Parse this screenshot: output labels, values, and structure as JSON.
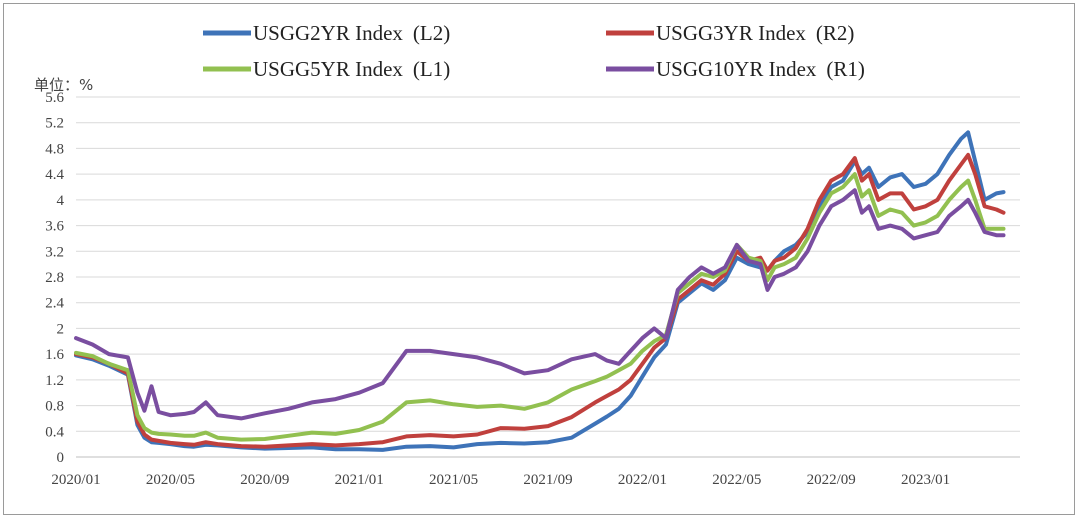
{
  "chart_data": {
    "type": "line",
    "unit_label": "单位：%",
    "ylim": [
      0,
      5.6
    ],
    "y_ticks": [
      "0",
      "0.4",
      "0.8",
      "1.2",
      "1.6",
      "2",
      "2.4",
      "2.8",
      "3.2",
      "3.6",
      "4",
      "4.4",
      "4.8",
      "5.2",
      "5.6"
    ],
    "y_tick_values": [
      0,
      0.4,
      0.8,
      1.2,
      1.6,
      2.0,
      2.4,
      2.8,
      3.2,
      3.6,
      4.0,
      4.4,
      4.8,
      5.2,
      5.6
    ],
    "x_range": [
      0,
      40
    ],
    "x_ticks": [
      "2020/01",
      "2020/05",
      "2020/09",
      "2021/01",
      "2021/05",
      "2021/09",
      "2022/01",
      "2022/05",
      "2022/09",
      "2023/01"
    ],
    "x_tick_values": [
      0,
      4,
      8,
      12,
      16,
      20,
      24,
      28,
      32,
      36
    ],
    "x_unit": "months since 2020/01",
    "legend": [
      {
        "name": "USGG2YR Index",
        "axis": "(L2)",
        "color": "#3e73b8"
      },
      {
        "name": "USGG3YR Index",
        "axis": "(R2)",
        "color": "#c0403d"
      },
      {
        "name": "USGG5YR Index",
        "axis": "(L1)",
        "color": "#92c050"
      },
      {
        "name": "USGG10YR Index",
        "axis": "(R1)",
        "color": "#7a4ea0"
      }
    ],
    "series": [
      {
        "name": "USGG2YR Index",
        "color": "#3e73b8",
        "x": [
          0,
          0.7,
          1.4,
          2.2,
          2.6,
          2.9,
          3.2,
          3.5,
          4,
          4.6,
          5,
          5.5,
          6,
          7,
          8,
          9,
          10,
          11,
          12,
          13,
          14,
          15,
          16,
          17,
          18,
          19,
          20,
          21,
          22,
          22.5,
          23,
          23.5,
          24,
          24.5,
          25,
          25.5,
          26,
          26.5,
          27,
          27.5,
          28,
          28.5,
          29,
          29.3,
          29.6,
          30,
          30.5,
          31,
          31.5,
          32,
          32.5,
          33,
          33.3,
          33.6,
          34,
          34.5,
          35,
          35.5,
          36,
          36.5,
          37,
          37.5,
          37.8,
          38.1,
          38.5,
          39,
          39.3
        ],
        "y": [
          1.58,
          1.52,
          1.42,
          1.28,
          0.5,
          0.3,
          0.23,
          0.22,
          0.2,
          0.17,
          0.16,
          0.19,
          0.18,
          0.15,
          0.13,
          0.14,
          0.15,
          0.12,
          0.12,
          0.11,
          0.16,
          0.17,
          0.15,
          0.2,
          0.22,
          0.21,
          0.23,
          0.3,
          0.52,
          0.63,
          0.75,
          0.95,
          1.25,
          1.55,
          1.75,
          2.4,
          2.55,
          2.7,
          2.6,
          2.75,
          3.1,
          3.0,
          2.95,
          2.9,
          3.05,
          3.2,
          3.3,
          3.5,
          3.9,
          4.2,
          4.3,
          4.6,
          4.4,
          4.5,
          4.2,
          4.35,
          4.4,
          4.2,
          4.25,
          4.4,
          4.7,
          4.95,
          5.05,
          4.6,
          4.0,
          4.1,
          4.12
        ]
      },
      {
        "name": "USGG3YR Index",
        "color": "#c0403d",
        "x": [
          0,
          0.7,
          1.4,
          2.2,
          2.6,
          2.9,
          3.2,
          3.5,
          4,
          4.6,
          5,
          5.5,
          6,
          7,
          8,
          9,
          10,
          11,
          12,
          13,
          14,
          15,
          16,
          17,
          18,
          19,
          20,
          21,
          22,
          22.5,
          23,
          23.5,
          24,
          24.5,
          25,
          25.5,
          26,
          26.5,
          27,
          27.5,
          28,
          28.5,
          29,
          29.3,
          29.6,
          30,
          30.5,
          31,
          31.5,
          32,
          32.5,
          33,
          33.3,
          33.6,
          34,
          34.5,
          35,
          35.5,
          36,
          36.5,
          37,
          37.5,
          37.8,
          38.1,
          38.5,
          39,
          39.3
        ],
        "y": [
          1.6,
          1.55,
          1.45,
          1.3,
          0.55,
          0.35,
          0.27,
          0.25,
          0.22,
          0.2,
          0.19,
          0.23,
          0.2,
          0.17,
          0.16,
          0.18,
          0.2,
          0.18,
          0.2,
          0.23,
          0.32,
          0.34,
          0.32,
          0.35,
          0.45,
          0.44,
          0.48,
          0.62,
          0.85,
          0.95,
          1.05,
          1.2,
          1.45,
          1.7,
          1.85,
          2.45,
          2.6,
          2.75,
          2.68,
          2.85,
          3.2,
          3.05,
          3.1,
          2.9,
          3.05,
          3.1,
          3.25,
          3.55,
          4.0,
          4.3,
          4.4,
          4.65,
          4.3,
          4.4,
          4.0,
          4.1,
          4.1,
          3.85,
          3.9,
          4.0,
          4.3,
          4.55,
          4.7,
          4.4,
          3.9,
          3.85,
          3.8
        ]
      },
      {
        "name": "USGG5YR Index",
        "color": "#92c050",
        "x": [
          0,
          0.7,
          1.4,
          2.2,
          2.6,
          2.9,
          3.2,
          3.5,
          4,
          4.6,
          5,
          5.5,
          6,
          7,
          8,
          9,
          10,
          11,
          12,
          13,
          14,
          15,
          16,
          17,
          18,
          19,
          20,
          21,
          22,
          22.5,
          23,
          23.5,
          24,
          24.5,
          25,
          25.5,
          26,
          26.5,
          27,
          27.5,
          28,
          28.5,
          29,
          29.3,
          29.6,
          30,
          30.5,
          31,
          31.5,
          32,
          32.5,
          33,
          33.3,
          33.6,
          34,
          34.5,
          35,
          35.5,
          36,
          36.5,
          37,
          37.5,
          37.8,
          38.1,
          38.5,
          39,
          39.3
        ],
        "y": [
          1.62,
          1.57,
          1.45,
          1.35,
          0.65,
          0.45,
          0.38,
          0.36,
          0.35,
          0.33,
          0.33,
          0.38,
          0.3,
          0.27,
          0.28,
          0.33,
          0.38,
          0.36,
          0.42,
          0.55,
          0.85,
          0.88,
          0.82,
          0.78,
          0.8,
          0.75,
          0.85,
          1.05,
          1.18,
          1.25,
          1.35,
          1.45,
          1.65,
          1.8,
          1.9,
          2.55,
          2.7,
          2.85,
          2.8,
          2.9,
          3.3,
          3.1,
          3.05,
          2.75,
          2.95,
          3.0,
          3.1,
          3.4,
          3.8,
          4.1,
          4.2,
          4.4,
          4.05,
          4.15,
          3.75,
          3.85,
          3.8,
          3.6,
          3.65,
          3.75,
          4.0,
          4.2,
          4.3,
          4.0,
          3.55,
          3.55,
          3.55
        ]
      },
      {
        "name": "USGG10YR Index",
        "color": "#7a4ea0",
        "x": [
          0,
          0.7,
          1.4,
          2.2,
          2.6,
          2.9,
          3.2,
          3.5,
          4,
          4.6,
          5,
          5.5,
          6,
          7,
          8,
          9,
          10,
          11,
          12,
          13,
          14,
          15,
          16,
          17,
          18,
          19,
          20,
          21,
          22,
          22.5,
          23,
          23.5,
          24,
          24.5,
          25,
          25.5,
          26,
          26.5,
          27,
          27.5,
          28,
          28.5,
          29,
          29.3,
          29.6,
          30,
          30.5,
          31,
          31.5,
          32,
          32.5,
          33,
          33.3,
          33.6,
          34,
          34.5,
          35,
          35.5,
          36,
          36.5,
          37,
          37.5,
          37.8,
          38.1,
          38.5,
          39,
          39.3
        ],
        "y": [
          1.85,
          1.75,
          1.6,
          1.55,
          1.0,
          0.72,
          1.1,
          0.7,
          0.65,
          0.67,
          0.7,
          0.85,
          0.65,
          0.6,
          0.68,
          0.75,
          0.85,
          0.9,
          1.0,
          1.15,
          1.65,
          1.65,
          1.6,
          1.55,
          1.45,
          1.3,
          1.35,
          1.52,
          1.6,
          1.5,
          1.45,
          1.65,
          1.85,
          2.0,
          1.85,
          2.6,
          2.8,
          2.95,
          2.85,
          2.95,
          3.3,
          3.05,
          3.0,
          2.6,
          2.8,
          2.85,
          2.95,
          3.2,
          3.6,
          3.9,
          4.0,
          4.15,
          3.8,
          3.9,
          3.55,
          3.6,
          3.55,
          3.4,
          3.45,
          3.5,
          3.75,
          3.9,
          4.0,
          3.8,
          3.5,
          3.45,
          3.45
        ]
      }
    ]
  }
}
